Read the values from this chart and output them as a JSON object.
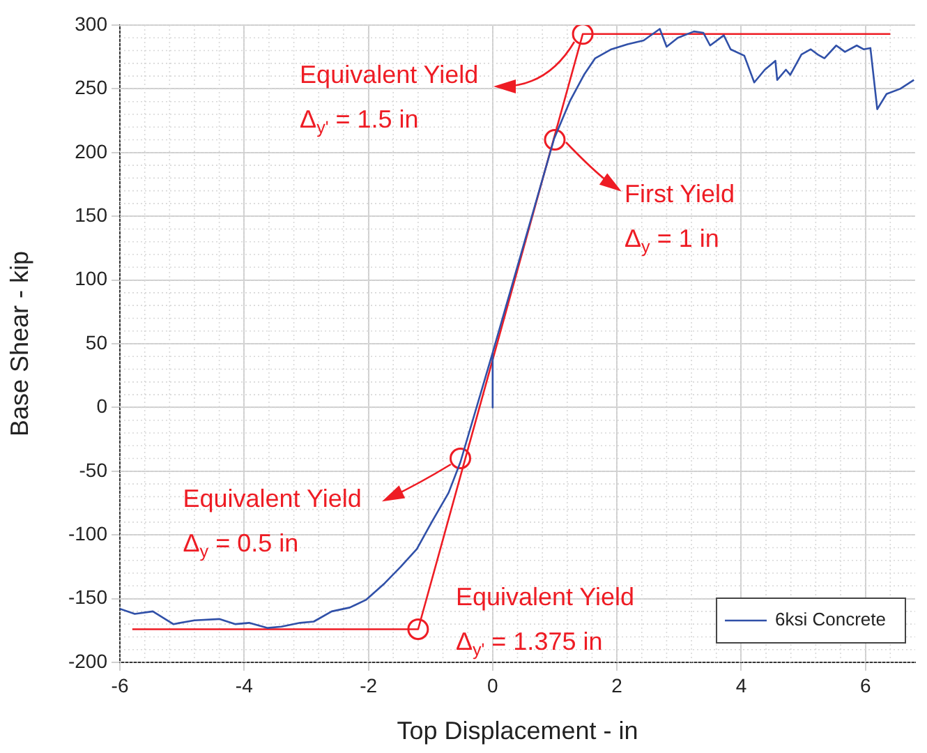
{
  "chart_data": {
    "type": "line",
    "xlabel": "Top Displacement - in",
    "ylabel": "Base Shear - kip",
    "xlim": [
      -6,
      6.8
    ],
    "xticks": [
      -6,
      -4,
      -2,
      0,
      2,
      4,
      6
    ],
    "ylim": [
      -200,
      300
    ],
    "yticks": [
      -200,
      -150,
      -100,
      -50,
      0,
      50,
      100,
      150,
      200,
      250,
      300
    ],
    "grid": true,
    "legend": "bottom right",
    "marker": "none",
    "line_style": "solid",
    "series": [
      {
        "name": "6ksi Concrete",
        "color": "#3050a8",
        "x": [
          -6,
          -5.76,
          -5.47,
          -5.14,
          -4.8,
          -4.4,
          -4.14,
          -3.92,
          -3.62,
          -3.4,
          -3.1,
          -2.88,
          -2.59,
          -2.3,
          -2.04,
          -1.74,
          -1.48,
          -1.22,
          -0.97,
          -0.71,
          -0.52,
          0,
          0,
          0,
          0.99,
          1.25,
          1.47,
          1.65,
          1.91,
          2.17,
          2.43,
          2.69,
          2.8,
          2.98,
          3.24,
          3.39,
          3.5,
          3.72,
          3.83,
          4.05,
          4.21,
          4.38,
          4.55,
          4.58,
          4.72,
          4.79,
          4.97,
          5.12,
          5.23,
          5.34,
          5.53,
          5.67,
          5.86,
          5.97,
          6.08,
          6.19,
          6.34,
          6.56,
          6.78
        ],
        "values": [
          -158,
          -162,
          -160,
          -170,
          -167,
          -166,
          -170,
          -169,
          -173,
          -172,
          -169,
          -168,
          -160,
          -157,
          -151,
          -138,
          -125,
          -111,
          -89,
          -67,
          -43,
          43,
          0,
          43,
          211,
          241,
          261,
          274,
          281,
          285,
          288,
          297,
          283,
          290,
          295,
          294,
          284,
          292,
          281,
          276,
          255,
          265,
          272,
          257,
          265,
          261,
          277,
          281,
          277,
          274,
          284,
          279,
          284,
          281,
          282,
          234,
          246,
          250,
          257
        ]
      },
      {
        "type": "line",
        "color": "#ee1c24",
        "x": [
          -5.8,
          -1.2,
          1.45,
          6.4
        ],
        "values": [
          -174,
          -174,
          293,
          293
        ]
      },
      {
        "type": "scatter",
        "marker": "circle",
        "color": "#ee1c24",
        "x": [
          -1.2,
          -0.52,
          1,
          1.45
        ],
        "values": [
          -174,
          -40,
          210,
          293
        ]
      }
    ],
    "annotations": [
      {
        "text": "Equivalent Yield\nΔ$_{y'}$ = 1.5 in",
        "x": 1.45,
        "y": 293
      },
      {
        "text": "First Yield\nΔ$_{y}$ = 1 in",
        "x": 1,
        "y": 210
      },
      {
        "text": "Equivalent Yield\nΔ$_{y}$ = 0.5 in",
        "x": -0.52,
        "y": -40
      },
      {
        "text": "Equivalent Yield\nΔ$_{y'}$ = 1.375 in",
        "x": -1.2,
        "y": -174
      }
    ]
  }
}
